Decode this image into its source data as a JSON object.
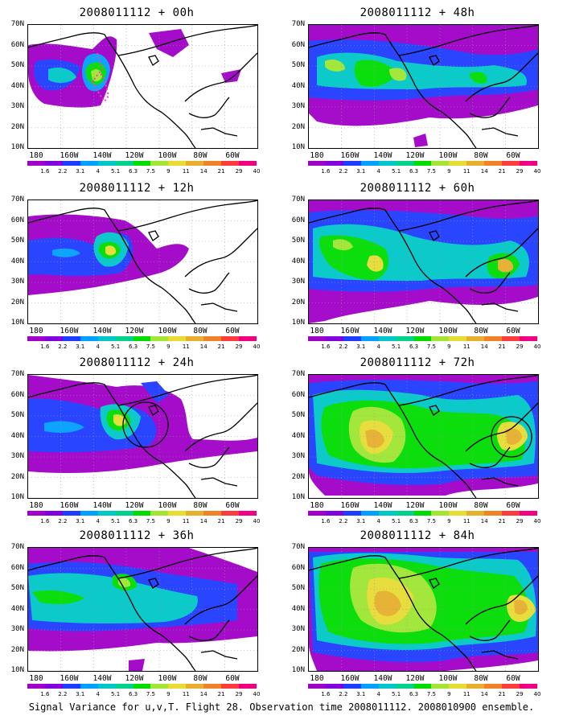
{
  "caption": "Signal Variance for u,v,T. Flight 28. Observation time 2008011112. 2008010900 ensemble.",
  "axes": {
    "y_ticks": [
      "70N",
      "60N",
      "50N",
      "40N",
      "30N",
      "20N",
      "10N"
    ],
    "x_ticks": [
      "180",
      "160W",
      "140W",
      "120W",
      "100W",
      "80W",
      "60W"
    ]
  },
  "colorbar": {
    "levels": [
      "1.6",
      "2.2",
      "3.1",
      "4",
      "5.1",
      "6.3",
      "7.5",
      "9",
      "11",
      "14",
      "21",
      "29",
      "40"
    ],
    "colors": [
      "#a000c8",
      "#8200dc",
      "#1e3cff",
      "#00a0ff",
      "#00c8c8",
      "#00d28c",
      "#00dc00",
      "#a0e632",
      "#e6dc32",
      "#e6af2d",
      "#f08228",
      "#fa3c3c",
      "#f00082"
    ]
  },
  "panels": [
    {
      "title": "2008011112 + 00h"
    },
    {
      "title": "2008011112 + 48h"
    },
    {
      "title": "2008011112 + 12h"
    },
    {
      "title": "2008011112 + 60h"
    },
    {
      "title": "2008011112 + 24h"
    },
    {
      "title": "2008011112 + 72h"
    },
    {
      "title": "2008011112 + 36h"
    },
    {
      "title": "2008011112 + 84h"
    }
  ]
}
